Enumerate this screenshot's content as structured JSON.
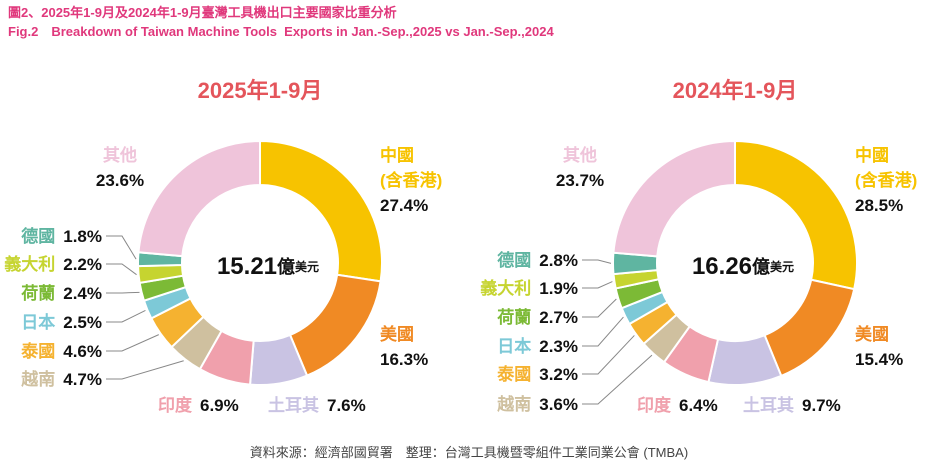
{
  "header": {
    "title": "圖2、2025年1-9月及2024年1-9月臺灣工具機出口主要國家比重分析",
    "subtitle": "Fig.2　Breakdown of Taiwan Machine Tools  Exports in Jan.-Sep.,2025 vs Jan.-Sep.,2024"
  },
  "source": "資料來源：經濟部國貿署　整理：台灣工具機暨零組件工業同業公會 (TMBA)",
  "chart_data": [
    {
      "type": "pie",
      "title": "2025年1-9月",
      "total": 15.21,
      "total_unit": "億",
      "total_currency": "美元",
      "categories": [
        "中國\n(含香港)",
        "美國",
        "土耳其",
        "印度",
        "越南",
        "泰國",
        "日本",
        "荷蘭",
        "義大利",
        "德國",
        "其他"
      ],
      "values": [
        27.4,
        16.3,
        7.6,
        6.9,
        4.7,
        4.6,
        2.5,
        2.4,
        2.2,
        1.8,
        23.6
      ],
      "value_labels": [
        "27.4%",
        "16.3%",
        "7.6%",
        "6.9%",
        "4.7%",
        "4.6%",
        "2.5%",
        "2.4%",
        "2.2%",
        "1.8%",
        "23.6%"
      ],
      "colors": [
        "#f7c300",
        "#f08a24",
        "#c9c3e3",
        "#f0a0ac",
        "#cfc09f",
        "#f5b230",
        "#7dc9d7",
        "#7cba36",
        "#c6d430",
        "#5fb5a1",
        "#efc4da"
      ]
    },
    {
      "type": "pie",
      "title": "2024年1-9月",
      "total": 16.26,
      "total_unit": "億",
      "total_currency": "美元",
      "categories": [
        "中國\n(含香港)",
        "美國",
        "土耳其",
        "印度",
        "越南",
        "泰國",
        "日本",
        "荷蘭",
        "義大利",
        "德國",
        "其他"
      ],
      "values": [
        28.5,
        15.4,
        9.7,
        6.4,
        3.6,
        3.2,
        2.3,
        2.7,
        1.9,
        2.8,
        23.7
      ],
      "value_labels": [
        "28.5%",
        "15.4%",
        "9.7%",
        "6.4%",
        "3.6%",
        "3.2%",
        "2.3%",
        "2.7%",
        "1.9%",
        "2.8%",
        "23.7%"
      ],
      "colors": [
        "#f7c300",
        "#f08a24",
        "#c9c3e3",
        "#f0a0ac",
        "#cfc09f",
        "#f5b230",
        "#7dc9d7",
        "#7cba36",
        "#c6d430",
        "#5fb5a1",
        "#efc4da"
      ]
    }
  ]
}
